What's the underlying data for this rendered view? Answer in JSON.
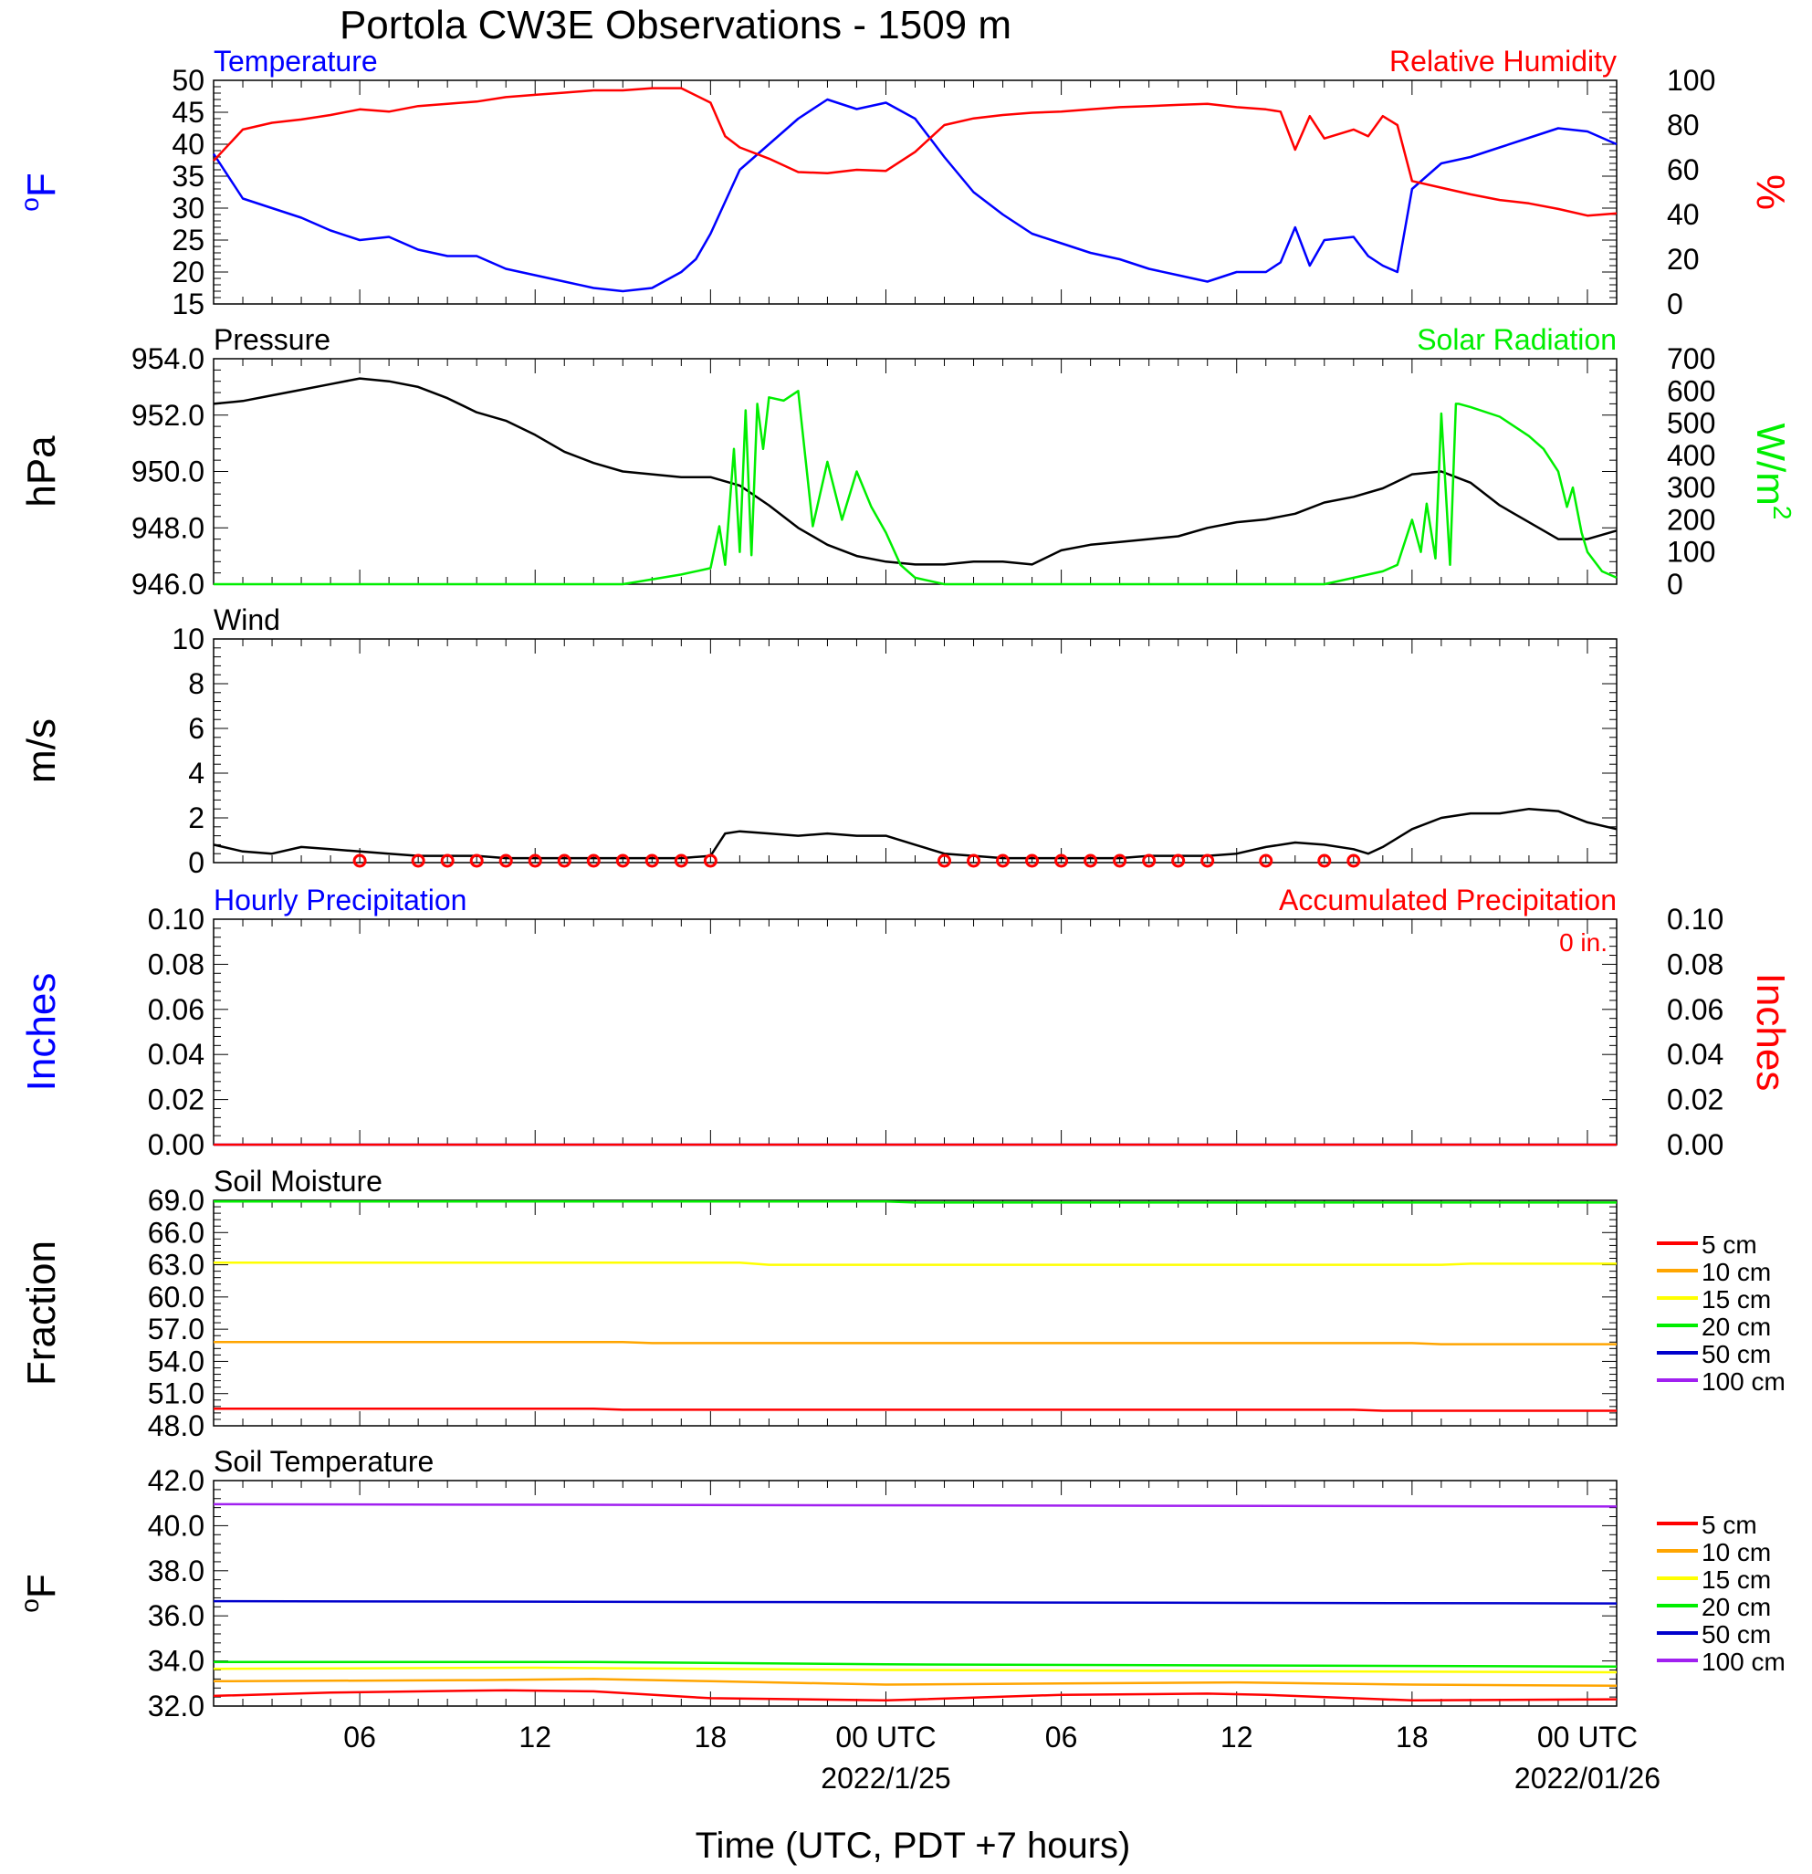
{
  "title": "Portola CW3E Observations - 1509 m",
  "x_axis": {
    "label": "Time (UTC, PDT +7 hours)",
    "hour_ticks": [
      "06",
      "12",
      "18",
      "00 UTC",
      "06",
      "12",
      "18",
      "00 UTC"
    ],
    "hour_tick_values": [
      6,
      12,
      18,
      24,
      30,
      36,
      42,
      48
    ],
    "date_labels": [
      "2022/1/25",
      "2022/01/26"
    ],
    "date_label_values": [
      24,
      48
    ],
    "range_hours": [
      1,
      49
    ]
  },
  "colors": {
    "blue": "#0000ff",
    "red": "#ff0000",
    "green": "#00ee00",
    "black": "#000000"
  },
  "chart_data": [
    {
      "type": "line",
      "panel": "temperature_humidity",
      "left_title": "Temperature",
      "right_title": "Relative Humidity",
      "left_unit": "oF",
      "right_unit": "%",
      "left_ylim": [
        15,
        50
      ],
      "left_ticks": [
        "50",
        "45",
        "40",
        "35",
        "30",
        "25",
        "20",
        "15"
      ],
      "right_ylim": [
        0,
        100
      ],
      "right_ticks": [
        "100",
        "80",
        "60",
        "40",
        "20",
        "0"
      ],
      "series": [
        {
          "name": "Temperature",
          "axis": "left",
          "color": "#0000ff",
          "x": [
            1,
            2,
            3,
            4,
            5,
            6,
            7,
            8,
            9,
            10,
            11,
            12,
            13,
            14,
            15,
            16,
            17,
            17.5,
            18,
            19,
            20,
            21,
            22,
            23,
            24,
            25,
            26,
            27,
            28,
            29,
            30,
            31,
            32,
            33,
            34,
            35,
            36,
            37,
            37.5,
            38,
            38.5,
            39,
            40,
            40.5,
            41,
            41.5,
            42,
            43,
            44,
            45,
            46,
            47,
            48,
            49
          ],
          "y": [
            38.5,
            31.5,
            30,
            28.5,
            26.5,
            25,
            25.5,
            23.5,
            22.5,
            22.5,
            20.5,
            19.5,
            18.5,
            17.5,
            17,
            17.5,
            20,
            22,
            26,
            36,
            40,
            44,
            47,
            45.5,
            46.5,
            44,
            38,
            32.5,
            29,
            26,
            24.5,
            23,
            22,
            20.5,
            19.5,
            18.5,
            20,
            20,
            21.5,
            27,
            21,
            25,
            25.5,
            22.5,
            21,
            20,
            33,
            37,
            38,
            39.5,
            41,
            42.5,
            42,
            40
          ]
        },
        {
          "name": "Relative Humidity",
          "axis": "right",
          "color": "#ff0000",
          "x": [
            1,
            2,
            3,
            4,
            5,
            6,
            7,
            8,
            9,
            10,
            11,
            12,
            13,
            14,
            15,
            16,
            17,
            18,
            18.5,
            19,
            20,
            21,
            22,
            23,
            24,
            25,
            26,
            27,
            28,
            29,
            30,
            31,
            32,
            33,
            34,
            35,
            36,
            37,
            37.5,
            38,
            38.5,
            39,
            40,
            40.5,
            41,
            41.5,
            42,
            43,
            44,
            45,
            46,
            47,
            48,
            49
          ],
          "y": [
            64,
            78,
            81,
            82.5,
            84.5,
            87,
            86,
            88.5,
            89.5,
            90.5,
            92.5,
            93.5,
            94.5,
            95.5,
            95.5,
            96.5,
            96.5,
            90,
            75,
            70,
            65,
            59,
            58.5,
            60,
            59.5,
            68,
            80,
            83,
            84.5,
            85.5,
            86,
            87,
            88,
            88.5,
            89,
            89.5,
            88,
            87,
            86,
            69,
            84,
            74,
            78,
            75,
            84,
            80,
            55,
            52,
            49,
            46.5,
            45,
            42.5,
            39.5,
            40.5
          ]
        }
      ]
    },
    {
      "type": "line",
      "panel": "pressure_solar",
      "left_title": "Pressure",
      "right_title": "Solar Radiation",
      "left_unit": "hPa",
      "right_unit": "W/m2",
      "left_ylim": [
        946,
        954
      ],
      "left_ticks": [
        "954.0",
        "952.0",
        "950.0",
        "948.0",
        "946.0"
      ],
      "right_ylim": [
        0,
        700
      ],
      "right_ticks": [
        "700",
        "600",
        "500",
        "400",
        "300",
        "200",
        "100",
        "0"
      ],
      "series": [
        {
          "name": "Pressure",
          "axis": "left",
          "color": "#000000",
          "x": [
            1,
            2,
            3,
            4,
            5,
            6,
            7,
            8,
            9,
            10,
            11,
            12,
            13,
            14,
            15,
            16,
            17,
            18,
            19,
            20,
            21,
            22,
            23,
            24,
            25,
            26,
            27,
            28,
            29,
            30,
            31,
            32,
            33,
            34,
            35,
            36,
            37,
            38,
            39,
            40,
            41,
            42,
            43,
            44,
            45,
            46,
            47,
            48,
            49
          ],
          "y": [
            952.4,
            952.5,
            952.7,
            952.9,
            953.1,
            953.3,
            953.2,
            953,
            952.6,
            952.1,
            951.8,
            951.3,
            950.7,
            950.3,
            950,
            949.9,
            949.8,
            949.8,
            949.5,
            948.8,
            948,
            947.4,
            947,
            946.8,
            946.7,
            946.7,
            946.8,
            946.8,
            946.7,
            947.2,
            947.4,
            947.5,
            947.6,
            947.7,
            948,
            948.2,
            948.3,
            948.5,
            948.9,
            949.1,
            949.4,
            949.9,
            950,
            949.6,
            948.8,
            948.2,
            947.6,
            947.6,
            947.9
          ]
        },
        {
          "name": "Solar Radiation",
          "axis": "right",
          "color": "#00ee00",
          "x": [
            1,
            15,
            17,
            18,
            18.3,
            18.5,
            18.8,
            19,
            19.2,
            19.4,
            19.6,
            19.8,
            20,
            20.5,
            21,
            21.5,
            22,
            22.5,
            23,
            23.5,
            24,
            24.5,
            25,
            26,
            39,
            41,
            41.5,
            42,
            42.3,
            42.5,
            42.8,
            43,
            43.3,
            43.5,
            43.6,
            43.8,
            44,
            45,
            46,
            46.5,
            47,
            47.3,
            47.5,
            47.8,
            48,
            48.5,
            49
          ],
          "y": [
            0,
            0,
            30,
            50,
            180,
            60,
            420,
            100,
            540,
            90,
            560,
            420,
            580,
            570,
            600,
            180,
            380,
            200,
            350,
            240,
            160,
            60,
            20,
            0,
            0,
            40,
            60,
            200,
            100,
            250,
            80,
            530,
            60,
            560,
            560,
            555,
            550,
            520,
            460,
            420,
            350,
            240,
            300,
            160,
            100,
            40,
            20
          ]
        }
      ]
    },
    {
      "type": "line",
      "panel": "wind",
      "left_title": "Wind",
      "left_unit": "m/s",
      "left_ylim": [
        0,
        10
      ],
      "left_ticks": [
        "10",
        "8",
        "6",
        "4",
        "2",
        "0"
      ],
      "series": [
        {
          "name": "Wind",
          "axis": "left",
          "color": "#000000",
          "x": [
            1,
            2,
            3,
            4,
            5,
            6,
            7,
            8,
            9,
            10,
            11,
            12,
            13,
            14,
            15,
            16,
            17,
            18,
            18.5,
            19,
            20,
            21,
            22,
            23,
            24,
            25,
            26,
            27,
            28,
            29,
            30,
            31,
            32,
            33,
            34,
            35,
            36,
            37,
            38,
            39,
            40,
            40.5,
            41,
            42,
            43,
            44,
            45,
            46,
            47,
            48,
            49
          ],
          "y": [
            0.8,
            0.5,
            0.4,
            0.7,
            0.6,
            0.5,
            0.4,
            0.3,
            0.3,
            0.3,
            0.2,
            0.2,
            0.2,
            0.2,
            0.2,
            0.2,
            0.2,
            0.3,
            1.3,
            1.4,
            1.3,
            1.2,
            1.3,
            1.2,
            1.2,
            0.8,
            0.4,
            0.3,
            0.2,
            0.2,
            0.2,
            0.2,
            0.2,
            0.3,
            0.3,
            0.3,
            0.4,
            0.7,
            0.9,
            0.8,
            0.6,
            0.4,
            0.7,
            1.5,
            2,
            2.2,
            2.2,
            2.4,
            2.3,
            1.8,
            1.5
          ]
        }
      ],
      "calm_hours": [
        6,
        8,
        9,
        10,
        11,
        12,
        13,
        14,
        15,
        16,
        17,
        18,
        26,
        27,
        28,
        29,
        30,
        31,
        32,
        33,
        34,
        35,
        37,
        39,
        40
      ]
    },
    {
      "type": "line",
      "panel": "precipitation",
      "left_title": "Hourly Precipitation",
      "right_title": "Accumulated Precipitation",
      "annotation": "0 in.",
      "left_unit": "Inches",
      "right_unit": "Inches",
      "left_ylim": [
        0,
        0.1
      ],
      "left_ticks": [
        "0.10",
        "0.08",
        "0.06",
        "0.04",
        "0.02",
        "0.00"
      ],
      "right_ylim": [
        0,
        0.1
      ],
      "right_ticks": [
        "0.10",
        "0.08",
        "0.06",
        "0.04",
        "0.02",
        "0.00"
      ],
      "series": [
        {
          "name": "Hourly Precipitation",
          "axis": "left",
          "color": "#0000ff",
          "x": [
            1,
            49
          ],
          "y": [
            0,
            0
          ]
        },
        {
          "name": "Accumulated Precipitation",
          "axis": "right",
          "color": "#ff0000",
          "x": [
            1,
            49
          ],
          "y": [
            0,
            0
          ]
        }
      ]
    },
    {
      "type": "line",
      "panel": "soil_moisture",
      "left_title": "Soil Moisture",
      "left_unit": "Fraction",
      "left_ylim": [
        48,
        69
      ],
      "left_ticks": [
        "69.0",
        "66.0",
        "63.0",
        "60.0",
        "57.0",
        "54.0",
        "51.0",
        "48.0"
      ],
      "legend": [
        "5 cm",
        "10 cm",
        "15 cm",
        "20 cm",
        "50 cm",
        "100 cm"
      ],
      "legend_colors": [
        "#ff0000",
        "#ffa500",
        "#ffff00",
        "#00ee00",
        "#0000cc",
        "#a020f0"
      ],
      "series": [
        {
          "name": "5 cm",
          "axis": "left",
          "color": "#ff0000",
          "x": [
            1,
            14,
            15,
            40,
            41,
            49
          ],
          "y": [
            49.6,
            49.6,
            49.5,
            49.5,
            49.4,
            49.4
          ]
        },
        {
          "name": "10 cm",
          "axis": "left",
          "color": "#ffa500",
          "x": [
            1,
            15,
            16,
            42,
            43,
            49
          ],
          "y": [
            55.8,
            55.8,
            55.7,
            55.7,
            55.6,
            55.6
          ]
        },
        {
          "name": "15 cm",
          "axis": "left",
          "color": "#ffff00",
          "x": [
            1,
            19,
            20,
            43,
            44,
            49
          ],
          "y": [
            63.2,
            63.2,
            63.0,
            63.0,
            63.1,
            63.1
          ]
        },
        {
          "name": "20 cm",
          "axis": "left",
          "color": "#00ee00",
          "x": [
            1,
            24,
            25,
            49
          ],
          "y": [
            68.9,
            68.9,
            68.8,
            68.8
          ]
        }
      ]
    },
    {
      "type": "line",
      "panel": "soil_temperature",
      "left_title": "Soil Temperature",
      "left_unit": "oF",
      "left_ylim": [
        32,
        42
      ],
      "left_ticks": [
        "42.0",
        "40.0",
        "38.0",
        "36.0",
        "34.0",
        "32.0"
      ],
      "legend": [
        "5 cm",
        "10 cm",
        "15 cm",
        "20 cm",
        "50 cm",
        "100 cm"
      ],
      "legend_colors": [
        "#ff0000",
        "#ffa500",
        "#ffff00",
        "#00ee00",
        "#0000cc",
        "#a020f0"
      ],
      "series": [
        {
          "name": "5 cm",
          "axis": "left",
          "color": "#ff0000",
          "x": [
            1,
            5,
            11,
            14,
            18,
            24,
            30,
            35,
            37,
            42,
            49
          ],
          "y": [
            32.45,
            32.6,
            32.7,
            32.65,
            32.35,
            32.25,
            32.5,
            32.55,
            32.5,
            32.25,
            32.3
          ]
        },
        {
          "name": "10 cm",
          "axis": "left",
          "color": "#ffa500",
          "x": [
            1,
            10,
            14,
            18,
            24,
            30,
            36,
            42,
            49
          ],
          "y": [
            33.1,
            33.15,
            33.2,
            33.1,
            32.95,
            33,
            33.05,
            32.95,
            32.9
          ]
        },
        {
          "name": "15 cm",
          "axis": "left",
          "color": "#ffff00",
          "x": [
            1,
            12,
            24,
            36,
            49
          ],
          "y": [
            33.65,
            33.7,
            33.6,
            33.55,
            33.5
          ]
        },
        {
          "name": "20 cm",
          "axis": "left",
          "color": "#00ee00",
          "x": [
            1,
            14,
            24,
            36,
            49
          ],
          "y": [
            33.95,
            33.95,
            33.85,
            33.8,
            33.75
          ]
        },
        {
          "name": "50 cm",
          "axis": "left",
          "color": "#0000cc",
          "x": [
            1,
            49
          ],
          "y": [
            36.65,
            36.55
          ]
        },
        {
          "name": "100 cm",
          "axis": "left",
          "color": "#a020f0",
          "x": [
            1,
            49
          ],
          "y": [
            40.95,
            40.85
          ]
        }
      ]
    }
  ]
}
